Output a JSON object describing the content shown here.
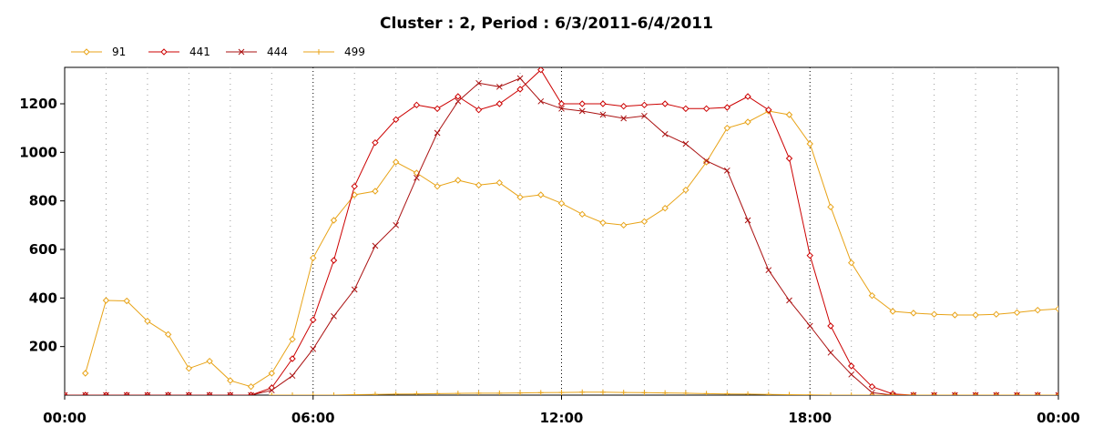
{
  "chart_data": {
    "type": "line",
    "title": "Cluster : 2, Period : 6/3/2011-6/4/2011",
    "xlabel": "",
    "ylabel": "",
    "x_ticks": [
      "00:00",
      "06:00",
      "12:00",
      "18:00",
      "00:00"
    ],
    "y_ticks": [
      "200",
      "400",
      "600",
      "800",
      "1000",
      "1200"
    ],
    "xlim": [
      0,
      1440
    ],
    "ylim": [
      0,
      1350
    ],
    "grid": true,
    "legend_position": "top-left",
    "x_unit": "minutes since 00:00",
    "series": [
      {
        "name": "91",
        "color": "#E8A317",
        "marker": "diamond",
        "x": [
          30,
          60,
          90,
          120,
          150,
          180,
          210,
          240,
          270,
          300,
          330,
          360,
          390,
          420,
          450,
          480,
          510,
          540,
          570,
          600,
          630,
          660,
          690,
          720,
          750,
          780,
          810,
          840,
          870,
          900,
          930,
          960,
          990,
          1020,
          1050,
          1080,
          1110,
          1140,
          1170,
          1200,
          1230,
          1260,
          1290,
          1320,
          1350,
          1380,
          1410,
          1440
        ],
        "values": [
          90,
          390,
          388,
          305,
          250,
          110,
          140,
          60,
          35,
          90,
          230,
          565,
          720,
          825,
          840,
          960,
          915,
          860,
          885,
          865,
          875,
          815,
          825,
          790,
          745,
          710,
          700,
          715,
          770,
          845,
          960,
          1100,
          1125,
          1170,
          1155,
          1035,
          775,
          545,
          410,
          345,
          338,
          333,
          330,
          330,
          333,
          340,
          350,
          355
        ]
      },
      {
        "name": "441",
        "color": "#CC0000",
        "marker": "diamond",
        "x": [
          0,
          30,
          60,
          90,
          120,
          150,
          180,
          210,
          240,
          270,
          300,
          330,
          360,
          390,
          420,
          450,
          480,
          510,
          540,
          570,
          600,
          630,
          660,
          690,
          720,
          750,
          780,
          810,
          840,
          870,
          900,
          930,
          960,
          990,
          1020,
          1050,
          1080,
          1110,
          1140,
          1170,
          1200,
          1230,
          1260,
          1290,
          1320,
          1350,
          1380,
          1410,
          1440
        ],
        "values": [
          0,
          0,
          0,
          0,
          0,
          0,
          0,
          0,
          0,
          0,
          30,
          150,
          310,
          555,
          860,
          1040,
          1135,
          1195,
          1180,
          1230,
          1175,
          1200,
          1260,
          1340,
          1200,
          1200,
          1200,
          1190,
          1195,
          1200,
          1180,
          1180,
          1185,
          1230,
          1175,
          975,
          575,
          285,
          120,
          35,
          5,
          0,
          0,
          0,
          0,
          0,
          0,
          0,
          0
        ]
      },
      {
        "name": "444",
        "color": "#AA1111",
        "marker": "x",
        "x": [
          0,
          30,
          60,
          90,
          120,
          150,
          180,
          210,
          240,
          270,
          300,
          330,
          360,
          390,
          420,
          450,
          480,
          510,
          540,
          570,
          600,
          630,
          660,
          690,
          720,
          750,
          780,
          810,
          840,
          870,
          900,
          930,
          960,
          990,
          1020,
          1050,
          1080,
          1110,
          1140,
          1170,
          1200,
          1230,
          1260,
          1290,
          1320,
          1350,
          1380,
          1410,
          1440
        ],
        "values": [
          0,
          0,
          0,
          0,
          0,
          0,
          0,
          0,
          0,
          0,
          20,
          80,
          190,
          325,
          435,
          615,
          700,
          895,
          1080,
          1210,
          1285,
          1270,
          1305,
          1210,
          1180,
          1170,
          1155,
          1140,
          1150,
          1075,
          1035,
          965,
          925,
          720,
          515,
          390,
          285,
          175,
          85,
          10,
          0,
          0,
          0,
          0,
          0,
          0,
          0,
          0,
          0
        ]
      },
      {
        "name": "499",
        "color": "#E8A317",
        "marker": "plus",
        "x": [
          300,
          330,
          360,
          390,
          420,
          450,
          480,
          510,
          540,
          570,
          600,
          630,
          660,
          690,
          720,
          750,
          780,
          810,
          840,
          870,
          900,
          930,
          960,
          990,
          1020,
          1050,
          1080,
          1110,
          1140,
          1170,
          1200,
          1230,
          1260,
          1290,
          1320,
          1350,
          1380,
          1410,
          1440
        ],
        "values": [
          0,
          0,
          0,
          0,
          2,
          3,
          4,
          5,
          6,
          7,
          8,
          8,
          9,
          10,
          11,
          12,
          12,
          11,
          10,
          9,
          8,
          6,
          5,
          4,
          3,
          2,
          1,
          0,
          0,
          0,
          0,
          0,
          0,
          0,
          0,
          0,
          0,
          0,
          0
        ]
      }
    ]
  }
}
